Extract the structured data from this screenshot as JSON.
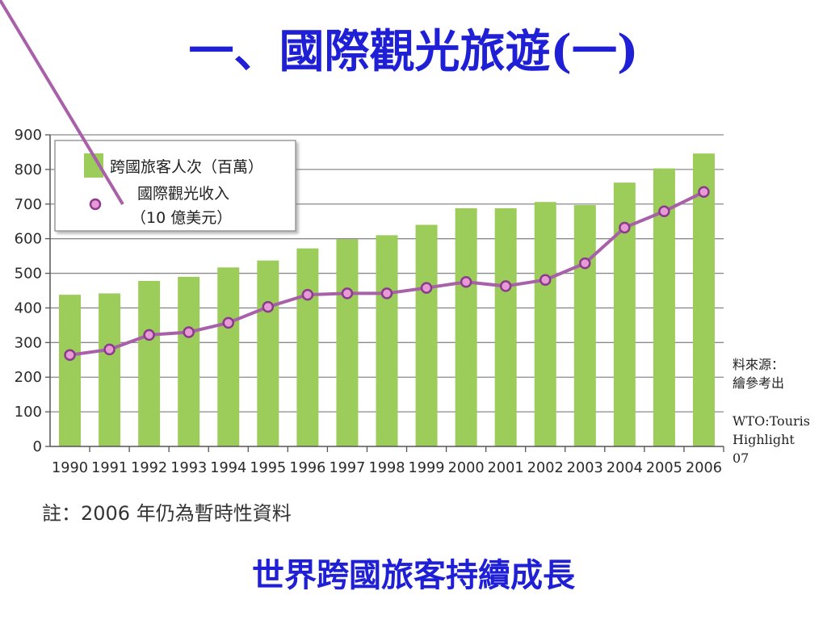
{
  "slide_title": "一、國際觀光旅遊(一)",
  "chart_data": {
    "type": "bar",
    "categories": [
      "1990",
      "1991",
      "1992",
      "1993",
      "1994",
      "1995",
      "1996",
      "1997",
      "1998",
      "1999",
      "2000",
      "2001",
      "2002",
      "2003",
      "2004",
      "2005",
      "2006"
    ],
    "series": [
      {
        "name": "跨國旅客人次（百萬）",
        "type": "bar",
        "color": "#9ccc5a",
        "values": [
          438,
          442,
          478,
          490,
          517,
          537,
          572,
          598,
          610,
          640,
          688,
          688,
          706,
          697,
          762,
          803,
          846
        ]
      },
      {
        "name": "國際觀光收入（10 億美元）",
        "type": "line",
        "color": "#a860a8",
        "values": [
          264,
          280,
          322,
          330,
          357,
          403,
          438,
          442,
          442,
          458,
          475,
          463,
          481,
          529,
          632,
          679,
          735
        ]
      }
    ],
    "legend": {
      "bar_label": "跨國旅客人次（百萬）",
      "line_label_line1": "國際觀光收入",
      "line_label_line2": "（10 億美元）",
      "placement": "top-left"
    },
    "yticks": [
      "0",
      "100",
      "200",
      "300",
      "400",
      "500",
      "600",
      "700",
      "800",
      "900"
    ],
    "ylim": [
      0,
      900
    ],
    "grid": true
  },
  "source_note": {
    "line1": "料來源：",
    "line2": "繪參考出",
    "line3": "WTO:Touris",
    "line4": "Highlight",
    "line5": "07"
  },
  "footnote": "註：2006 年仍為暫時性資料",
  "caption": "世界跨國旅客持續成長"
}
